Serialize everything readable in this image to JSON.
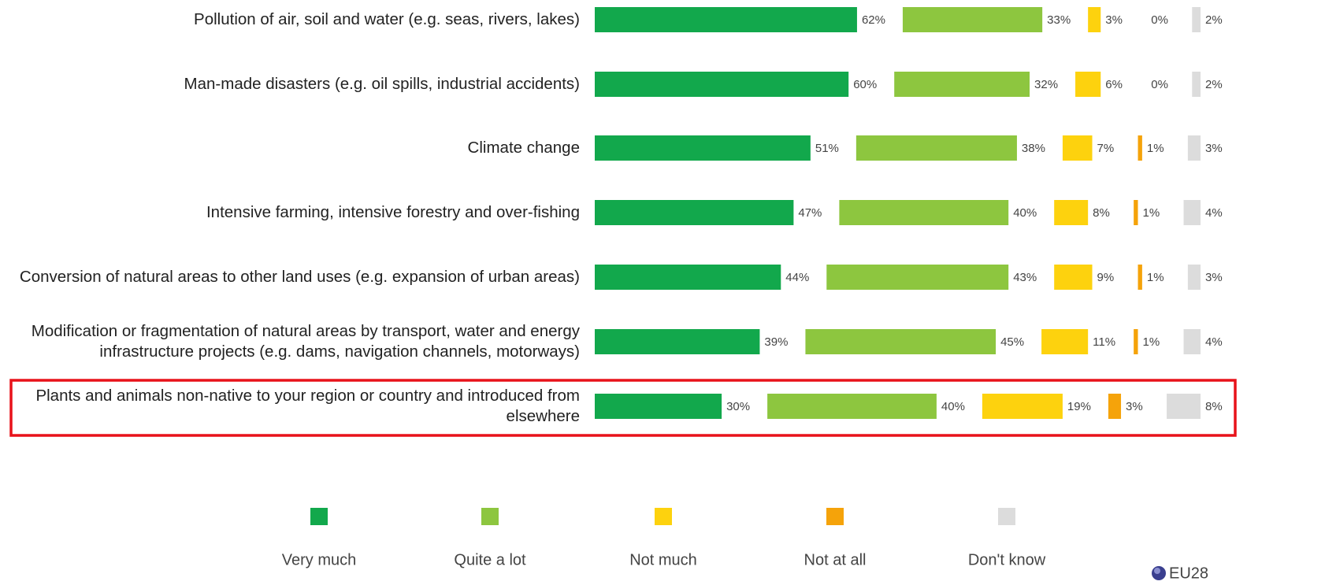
{
  "chart_data": {
    "type": "stacked-bar-horizontal",
    "categories": [
      "Pollution of air, soil and water (e.g. seas, rivers, lakes)",
      "Man-made disasters (e.g. oil spills, industrial accidents)",
      "Climate change",
      "Intensive farming, intensive forestry and over-fishing",
      "Conversion of natural areas to other land uses (e.g. expansion of urban areas)",
      "Modification or fragmentation of natural areas by transport, water and energy infrastructure projects (e.g. dams, navigation channels, motorways)",
      "Plants and animals non-native to your region or country and introduced from elsewhere"
    ],
    "series": [
      {
        "name": "Very much",
        "color": "#12a84c",
        "values": [
          62,
          60,
          51,
          47,
          44,
          39,
          30
        ],
        "value_labels": [
          "62%",
          "60%",
          "51%",
          "47%",
          "44%",
          "39%",
          "30%"
        ]
      },
      {
        "name": "Quite a lot",
        "color": "#8dc63f",
        "values": [
          33,
          32,
          38,
          40,
          43,
          45,
          40
        ],
        "value_labels": [
          "33%",
          "32%",
          "38%",
          "40%",
          "43%",
          "45%",
          "40%"
        ]
      },
      {
        "name": "Not much",
        "color": "#fdd20e",
        "values": [
          3,
          6,
          7,
          8,
          9,
          11,
          19
        ],
        "value_labels": [
          "3%",
          "6%",
          "7%",
          "8%",
          "9%",
          "11%",
          "19%"
        ]
      },
      {
        "name": "Not at all",
        "color": "#f5a30a",
        "values": [
          0,
          0,
          1,
          1,
          1,
          1,
          3
        ],
        "value_labels": [
          "0%",
          "0%",
          "1%",
          "1%",
          "1%",
          "1%",
          "3%"
        ]
      },
      {
        "name": "Don't know",
        "color": "#dcdcdc",
        "values": [
          2,
          2,
          3,
          4,
          3,
          4,
          8
        ],
        "value_labels": [
          "2%",
          "2%",
          "3%",
          "4%",
          "3%",
          "4%",
          "8%"
        ]
      }
    ],
    "note": "EU28"
  }
}
